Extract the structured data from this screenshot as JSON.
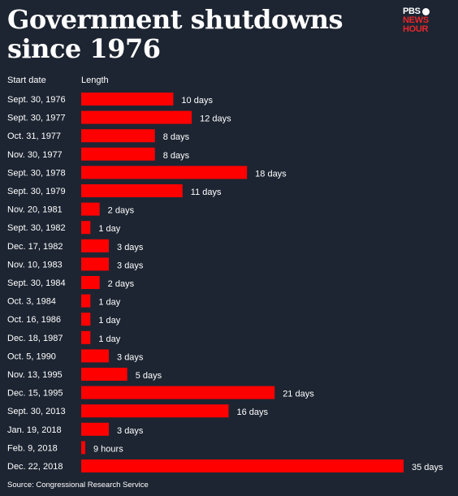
{
  "title": "Government shutdowns since 1976",
  "logo": {
    "line1": "PBS",
    "line2": "NEWS",
    "line3": "HOUR"
  },
  "headers": {
    "date": "Start date",
    "length": "Length"
  },
  "source": "Source: Congressional Research Service",
  "colors": {
    "background": "#1d2532",
    "bar": "#ff0000",
    "text": "#ffffff",
    "logo_accent": "#e8262b"
  },
  "chart_data": {
    "type": "bar",
    "orientation": "horizontal",
    "title": "Government shutdowns since 1976",
    "unit": "days",
    "categories": [
      "Sept. 30, 1976",
      "Sept. 30, 1977",
      "Oct. 31, 1977",
      "Nov. 30, 1977",
      "Sept. 30, 1978",
      "Sept. 30, 1979",
      "Nov. 20, 1981",
      "Sept. 30, 1982",
      "Dec. 17, 1982",
      "Nov. 10, 1983",
      "Sept. 30, 1984",
      "Oct. 3, 1984",
      "Oct. 16, 1986",
      "Dec. 18, 1987",
      "Oct. 5, 1990",
      "Nov. 13, 1995",
      "Dec. 15, 1995",
      "Sept. 30, 2013",
      "Jan. 19, 2018",
      "Feb. 9, 2018",
      "Dec. 22, 2018"
    ],
    "values": [
      10,
      12,
      8,
      8,
      18,
      11,
      2,
      1,
      3,
      3,
      2,
      1,
      1,
      1,
      3,
      5,
      21,
      16,
      3,
      0.375,
      35
    ],
    "labels": [
      "10 days",
      "12 days",
      "8 days",
      "8 days",
      "18 days",
      "11 days",
      "2 days",
      "1 day",
      "3 days",
      "3 days",
      "2 days",
      "1 day",
      "1 day",
      "1 day",
      "3 days",
      "5 days",
      "21 days",
      "16 days",
      "3 days",
      "9 hours",
      "35 days"
    ],
    "xlim": [
      0,
      35
    ],
    "grid": false,
    "legend": "none"
  }
}
